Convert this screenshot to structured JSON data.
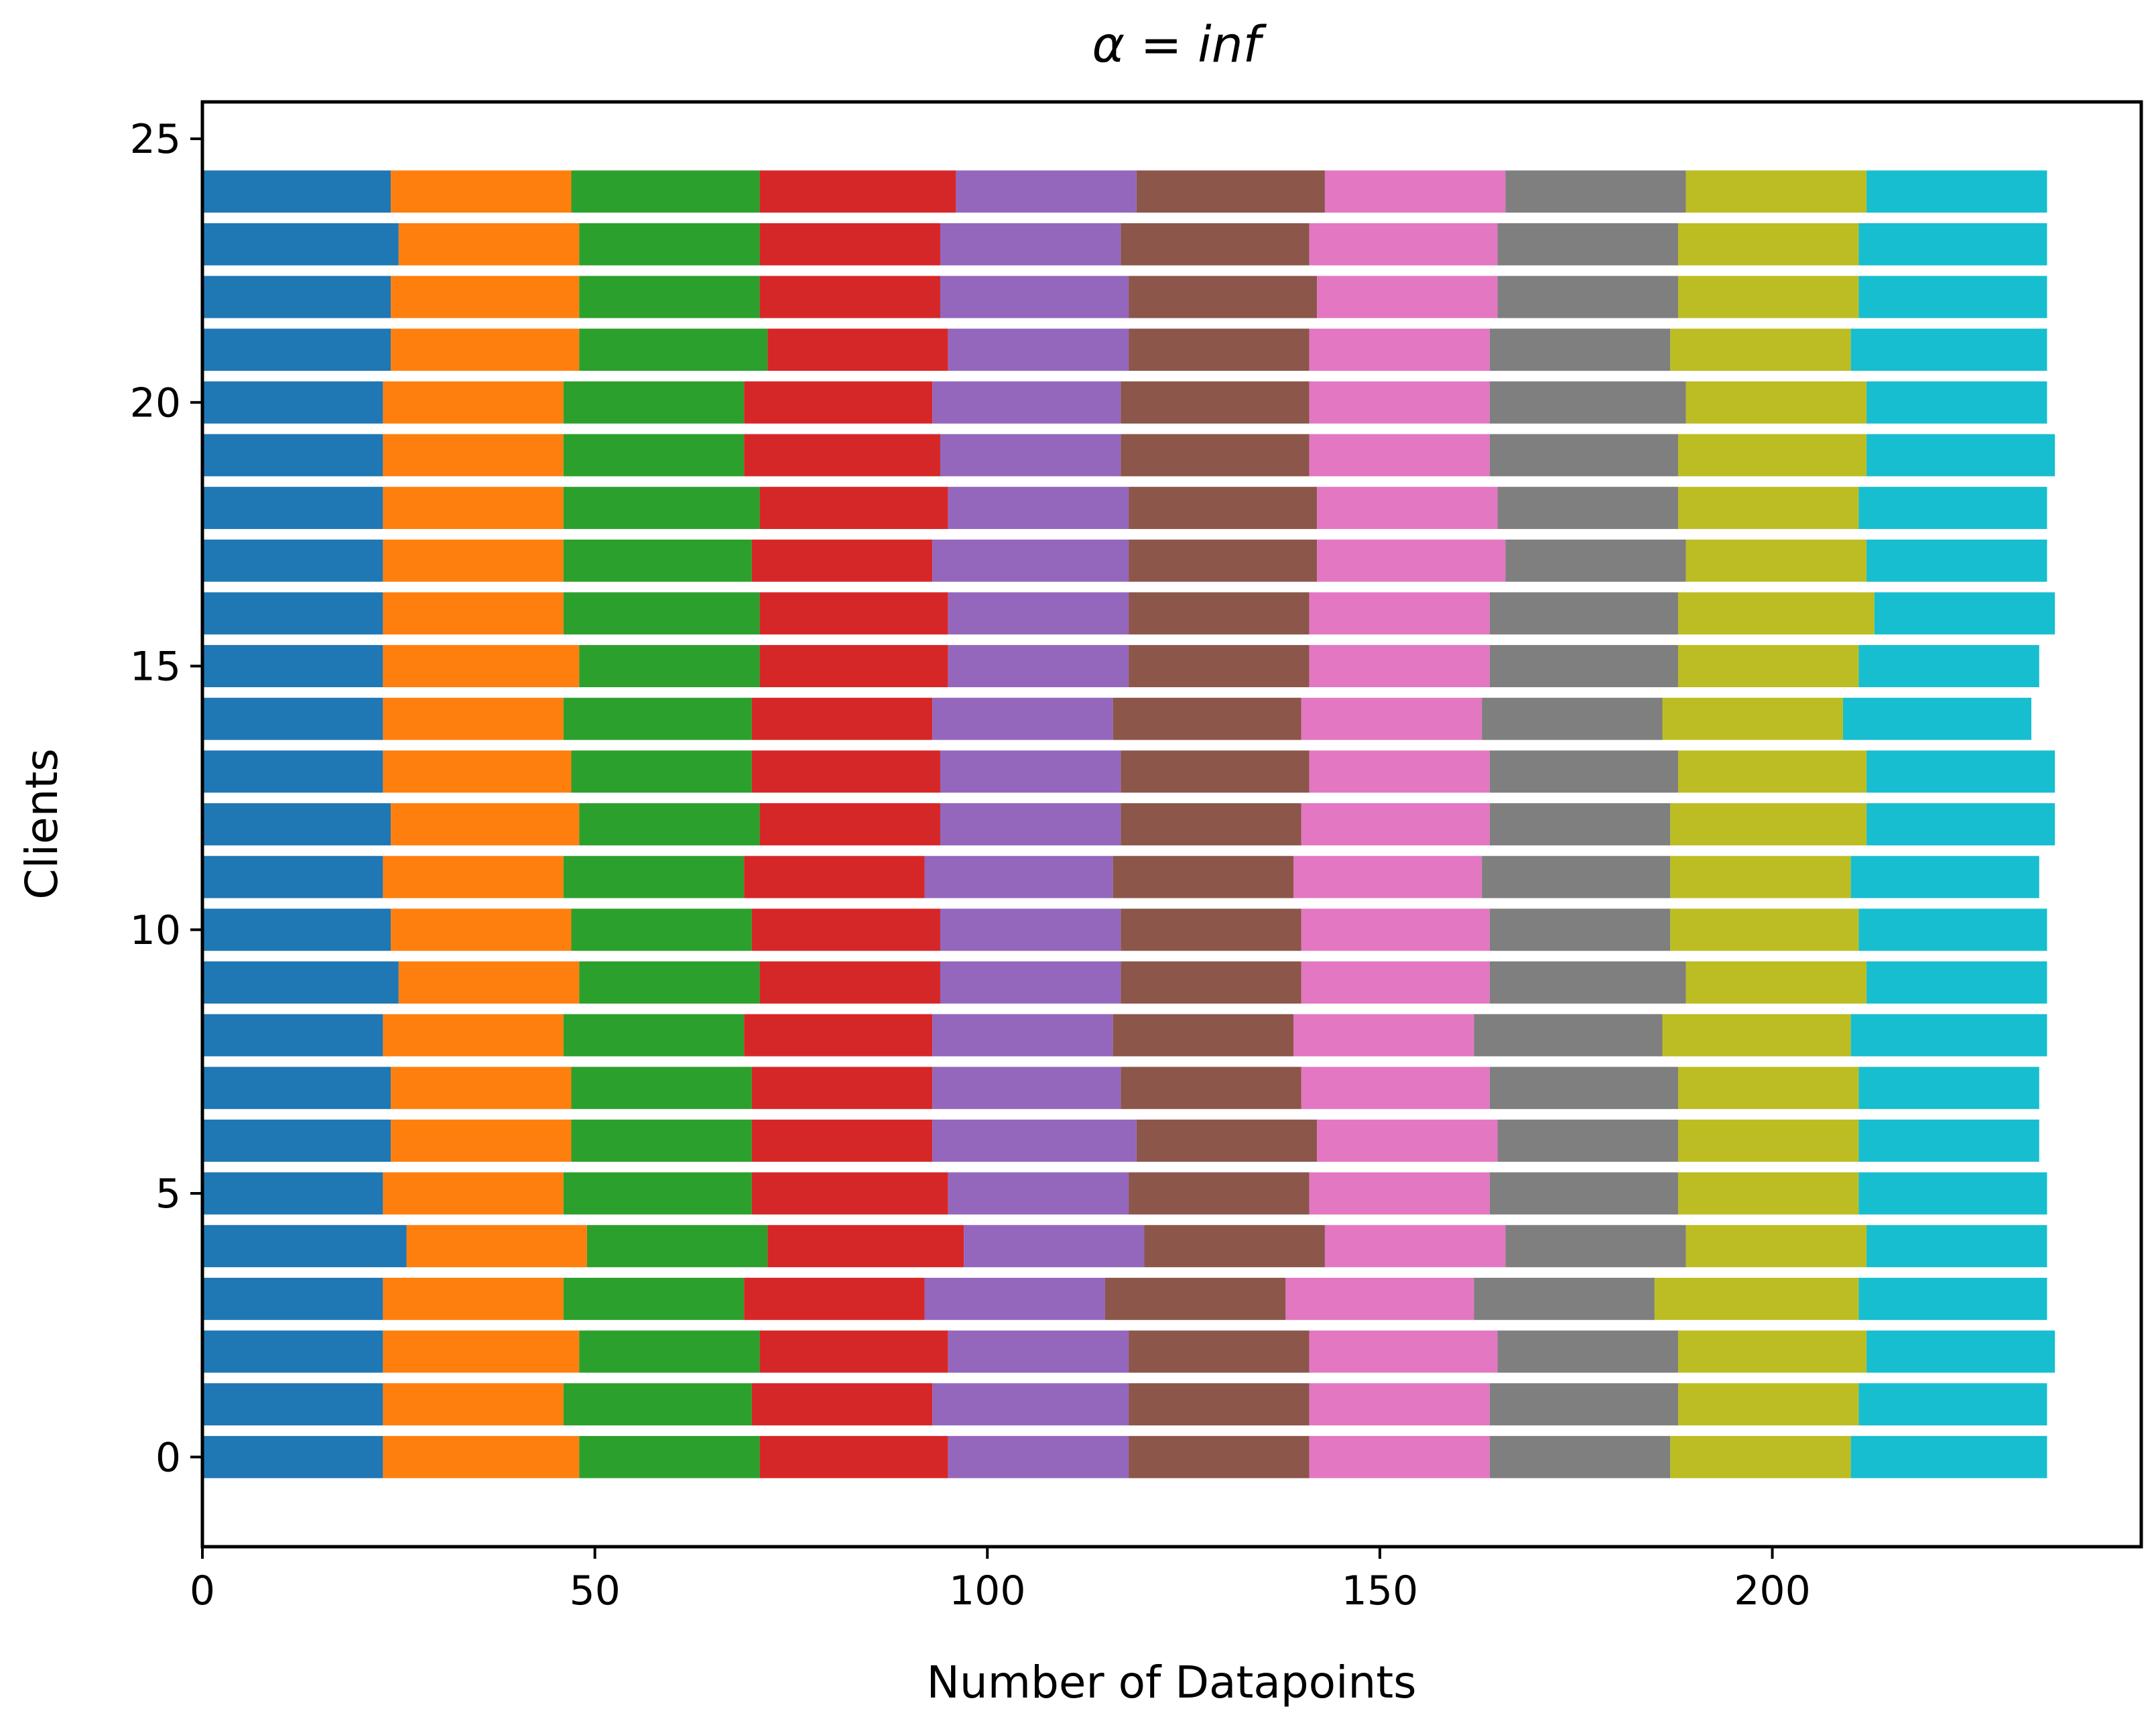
{
  "chart_data": {
    "type": "bar",
    "orientation": "horizontal",
    "stacked": true,
    "title": "α = inf",
    "xlabel": "Number of Datapoints",
    "ylabel": "Clients",
    "xlim": [
      0,
      247
    ],
    "ylim": [
      -1.7,
      25.7
    ],
    "xticks": [
      0,
      50,
      100,
      150,
      200
    ],
    "yticks": [
      0,
      5,
      10,
      15,
      20,
      25
    ],
    "grid": false,
    "legend": "none",
    "colors": [
      "#1f77b4",
      "#ff7f0e",
      "#2ca02c",
      "#d62728",
      "#9467bd",
      "#8c564b",
      "#e377c2",
      "#7f7f7f",
      "#bcbd22",
      "#17becf"
    ],
    "categories": [
      0,
      1,
      2,
      3,
      4,
      5,
      6,
      7,
      8,
      9,
      10,
      11,
      12,
      13,
      14,
      15,
      16,
      17,
      18,
      19,
      20,
      21,
      22,
      23,
      24
    ],
    "series": [
      {
        "values": [
          23,
          23,
          23,
          23,
          26,
          23,
          24,
          24,
          23,
          25,
          24,
          23,
          24,
          23,
          23,
          23,
          23,
          23,
          23,
          23,
          23,
          24,
          24,
          25,
          24
        ]
      },
      {
        "values": [
          25,
          23,
          25,
          23,
          23,
          23,
          23,
          23,
          23,
          23,
          23,
          23,
          24,
          24,
          23,
          25,
          23,
          23,
          23,
          23,
          23,
          24,
          24,
          23,
          23
        ]
      },
      {
        "values": [
          23,
          24,
          23,
          23,
          23,
          24,
          23,
          23,
          23,
          23,
          23,
          23,
          23,
          23,
          24,
          23,
          25,
          24,
          25,
          23,
          23,
          24,
          23,
          23,
          24
        ]
      },
      {
        "values": [
          24,
          23,
          24,
          23,
          25,
          25,
          23,
          23,
          24,
          23,
          24,
          23,
          23,
          24,
          23,
          24,
          24,
          23,
          24,
          25,
          24,
          23,
          23,
          23,
          25
        ]
      },
      {
        "values": [
          23,
          25,
          23,
          23,
          23,
          23,
          26,
          24,
          23,
          23,
          23,
          24,
          23,
          23,
          23,
          23,
          23,
          25,
          23,
          23,
          24,
          23,
          24,
          23,
          23
        ]
      },
      {
        "values": [
          23,
          23,
          23,
          23,
          23,
          23,
          23,
          23,
          23,
          23,
          23,
          23,
          23,
          24,
          24,
          23,
          23,
          24,
          24,
          24,
          24,
          23,
          24,
          24,
          24
        ]
      },
      {
        "values": [
          23,
          23,
          24,
          24,
          23,
          23,
          23,
          24,
          23,
          24,
          24,
          24,
          24,
          23,
          23,
          23,
          23,
          24,
          23,
          23,
          23,
          23,
          23,
          24,
          23
        ]
      },
      {
        "values": [
          23,
          24,
          23,
          23,
          23,
          24,
          23,
          24,
          24,
          25,
          23,
          24,
          23,
          24,
          23,
          24,
          24,
          23,
          23,
          24,
          25,
          23,
          23,
          23,
          23
        ]
      },
      {
        "values": [
          23,
          23,
          24,
          26,
          23,
          23,
          23,
          23,
          24,
          23,
          24,
          23,
          25,
          24,
          23,
          23,
          25,
          23,
          23,
          24,
          23,
          23,
          23,
          23,
          23
        ]
      },
      {
        "values": [
          25,
          24,
          24,
          24,
          23,
          24,
          23,
          23,
          25,
          23,
          24,
          24,
          24,
          24,
          24,
          23,
          23,
          23,
          24,
          24,
          23,
          25,
          24,
          24,
          23
        ]
      }
    ]
  }
}
